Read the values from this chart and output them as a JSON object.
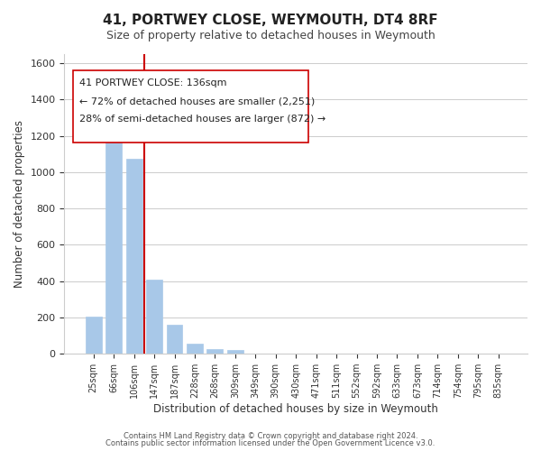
{
  "title": "41, PORTWEY CLOSE, WEYMOUTH, DT4 8RF",
  "subtitle": "Size of property relative to detached houses in Weymouth",
  "xlabel": "Distribution of detached houses by size in Weymouth",
  "ylabel": "Number of detached properties",
  "footer_line1": "Contains HM Land Registry data © Crown copyright and database right 2024.",
  "footer_line2": "Contains public sector information licensed under the Open Government Licence v3.0.",
  "bin_labels": [
    "25sqm",
    "66sqm",
    "106sqm",
    "147sqm",
    "187sqm",
    "228sqm",
    "268sqm",
    "309sqm",
    "349sqm",
    "390sqm",
    "430sqm",
    "471sqm",
    "511sqm",
    "552sqm",
    "592sqm",
    "633sqm",
    "673sqm",
    "714sqm",
    "754sqm",
    "795sqm",
    "835sqm"
  ],
  "bar_values": [
    205,
    1225,
    1075,
    410,
    160,
    55,
    25,
    20,
    0,
    0,
    0,
    0,
    0,
    0,
    0,
    0,
    0,
    0,
    0,
    0,
    0
  ],
  "bar_color": "#a8c8e8",
  "bar_edge_color": "#a8c8e8",
  "property_line_x": 2.52,
  "property_line_color": "#cc0000",
  "ann_line1": "41 PORTWEY CLOSE: 136sqm",
  "ann_line2": "← 72% of detached houses are smaller (2,251)",
  "ann_line3": "28% of semi-detached houses are larger (872) →",
  "ylim": [
    0,
    1650
  ],
  "yticks": [
    0,
    200,
    400,
    600,
    800,
    1000,
    1200,
    1400,
    1600
  ],
  "background_color": "#ffffff",
  "grid_color": "#cccccc"
}
